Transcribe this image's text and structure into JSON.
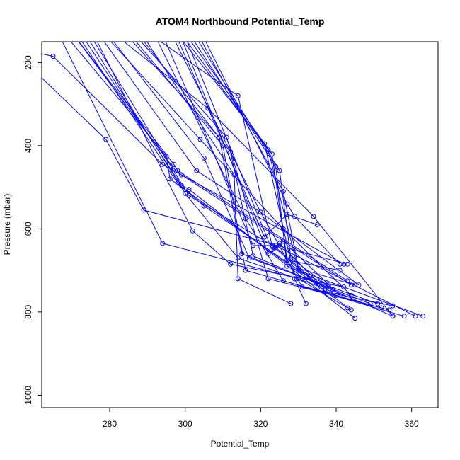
{
  "chart_data": {
    "type": "line",
    "title": "ATOM4 Northbound Potential_Temp",
    "xlabel": "Potential_Temp",
    "ylabel": "Pressure (mbar)",
    "xlim": [
      262,
      367
    ],
    "ylim": [
      1030,
      150
    ],
    "x_ticks": [
      "280",
      "300",
      "320",
      "340",
      "360"
    ],
    "y_ticks": [
      "200",
      "400",
      "600",
      "800",
      "1000"
    ],
    "series_color": "#0000ff",
    "grid": false,
    "legend": "none",
    "series": [
      {
        "x": [
          265,
          294,
          342
        ],
        "y": [
          185,
          445,
          685
        ]
      },
      {
        "x": [
          279,
          289,
          343
        ],
        "y": [
          385,
          555,
          685
        ]
      },
      {
        "x": [
          294,
          330,
          343
        ],
        "y": [
          635,
          720,
          790
        ]
      },
      {
        "x": [
          295,
          296,
          344
        ],
        "y": [
          425,
          480,
          795
        ]
      },
      {
        "x": [
          297,
          298,
          343
        ],
        "y": [
          445,
          460,
          725
        ]
      },
      {
        "x": [
          297,
          299,
          344
        ],
        "y": [
          455,
          470,
          735
        ]
      },
      {
        "x": [
          298,
          305,
          340
        ],
        "y": [
          490,
          545,
          760
        ]
      },
      {
        "x": [
          299,
          301,
          345
        ],
        "y": [
          495,
          505,
          815
        ]
      },
      {
        "x": [
          300,
          314,
          336
        ],
        "y": [
          515,
          670,
          740
        ]
      },
      {
        "x": [
          301,
          324,
          333
        ],
        "y": [
          520,
          645,
          715
        ]
      },
      {
        "x": [
          302,
          312,
          342
        ],
        "y": [
          605,
          685,
          740
        ]
      },
      {
        "x": [
          303,
          320,
          346
        ],
        "y": [
          460,
          560,
          735
        ]
      },
      {
        "x": [
          304,
          326,
          344
        ],
        "y": [
          385,
          600,
          760
        ]
      },
      {
        "x": [
          305,
          317,
          351
        ],
        "y": [
          430,
          670,
          780
        ]
      },
      {
        "x": [
          306,
          334,
          355
        ],
        "y": [
          310,
          570,
          810
        ]
      },
      {
        "x": [
          309,
          315,
          349
        ],
        "y": [
          380,
          660,
          780
        ]
      },
      {
        "x": [
          310,
          316,
          352
        ],
        "y": [
          400,
          700,
          790
        ]
      },
      {
        "x": [
          311,
          322,
          354
        ],
        "y": [
          380,
          720,
          795
        ]
      },
      {
        "x": [
          312,
          318,
          355
        ],
        "y": [
          415,
          665,
          810
        ]
      },
      {
        "x": [
          313,
          314,
          328
        ],
        "y": [
          470,
          720,
          780
        ]
      },
      {
        "x": [
          314,
          323,
          337
        ],
        "y": [
          280,
          640,
          750
        ]
      },
      {
        "x": [
          316,
          326,
          358
        ],
        "y": [
          575,
          725,
          810
        ]
      },
      {
        "x": [
          318,
          324,
          361
        ],
        "y": [
          640,
          640,
          810
        ]
      },
      {
        "x": [
          320,
          331,
          355
        ],
        "y": [
          560,
          740,
          785
        ]
      },
      {
        "x": [
          321,
          329,
          332
        ],
        "y": [
          395,
          720,
          780
        ]
      },
      {
        "x": [
          322,
          330,
          363
        ],
        "y": [
          410,
          700,
          810
        ]
      },
      {
        "x": [
          323,
          327,
          341
        ],
        "y": [
          420,
          675,
          700
        ]
      },
      {
        "x": [
          324,
          327,
          338
        ],
        "y": [
          450,
          690,
          735
        ]
      },
      {
        "x": [
          325,
          328,
          339
        ],
        "y": [
          460,
          670,
          745
        ]
      },
      {
        "x": [
          326,
          330,
          345
        ],
        "y": [
          510,
          695,
          735
        ]
      },
      {
        "x": [
          327,
          329,
          341
        ],
        "y": [
          540,
          570,
          685
        ]
      },
      {
        "x": [
          321,
          327,
          335
        ],
        "y": [
          620,
          565,
          590
        ]
      },
      {
        "x": [
          322,
          326,
          341
        ],
        "y": [
          660,
          630,
          760
        ]
      },
      {
        "x": [
          323,
          325,
          337
        ],
        "y": [
          650,
          635,
          745
        ]
      }
    ]
  }
}
